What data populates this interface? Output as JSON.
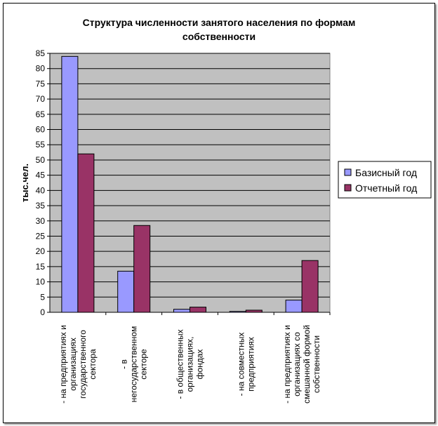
{
  "chart_data": {
    "type": "bar",
    "title": [
      "Структура численности занятого населения по формам",
      "собственности"
    ],
    "ylabel": "тыс.чел.",
    "xlabel": "",
    "ylim": [
      0,
      85
    ],
    "ytick_step": 5,
    "grid": true,
    "legend_position": "right",
    "categories": [
      [
        "- на предприятиях и",
        "организациях",
        "государственного",
        "сектора"
      ],
      [
        "- в",
        "негосударственном",
        "секторе"
      ],
      [
        "- в общественных",
        "организациях,",
        "фондах"
      ],
      [
        "- на совместных",
        "предприятиях"
      ],
      [
        "- на предприятиях и",
        "организациях со",
        "смешанной формой",
        "собственности"
      ]
    ],
    "series": [
      {
        "name": "Базисный год",
        "color": "#9999ff",
        "values": [
          84,
          13.5,
          1,
          0.3,
          4
        ]
      },
      {
        "name": "Отчетный год",
        "color": "#993366",
        "values": [
          52,
          28.5,
          1.7,
          0.7,
          17
        ]
      }
    ],
    "plot_background": "#c0c0c0"
  }
}
